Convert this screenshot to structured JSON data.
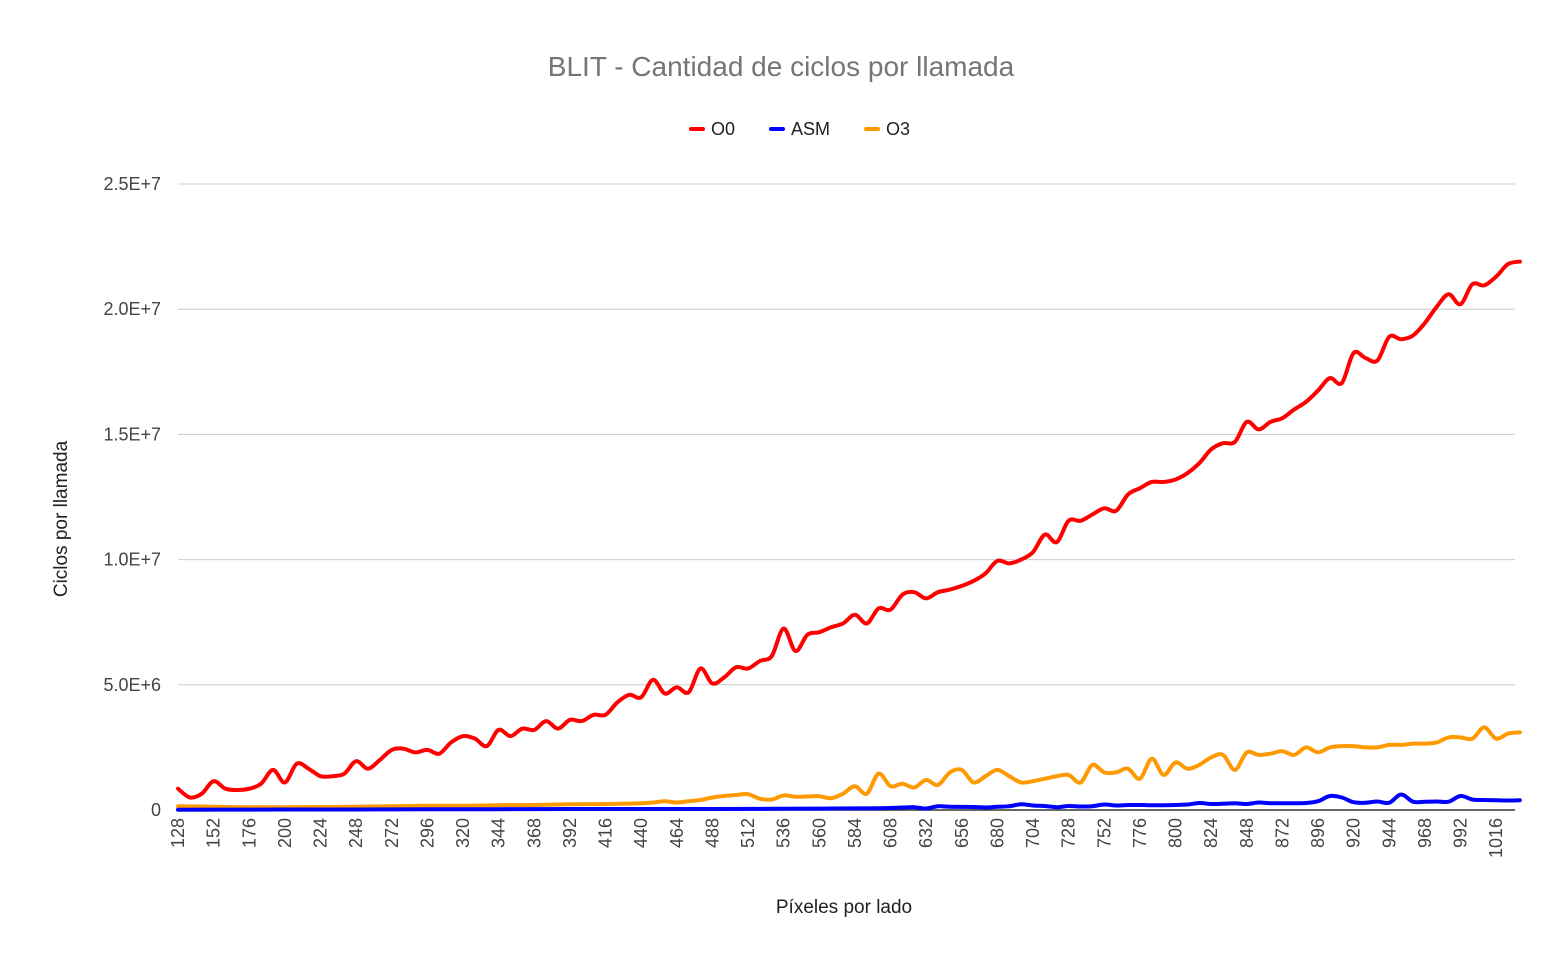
{
  "chart_data": {
    "type": "line",
    "title": "BLIT - Cantidad de ciclos por llamada",
    "xlabel": "Píxeles por lado",
    "ylabel": "Ciclos por llamada",
    "ylim": [
      0,
      25000000
    ],
    "yticks": [
      0,
      5000000,
      10000000,
      15000000,
      20000000,
      25000000
    ],
    "ytick_labels": [
      "0",
      "5.0E+6",
      "1.0E+7",
      "1.5E+7",
      "2.0E+7",
      "2.5E+7"
    ],
    "xlim": [
      128,
      1024
    ],
    "xticks": [
      128,
      152,
      176,
      200,
      224,
      248,
      272,
      296,
      320,
      344,
      368,
      392,
      416,
      440,
      464,
      488,
      512,
      536,
      560,
      584,
      608,
      632,
      656,
      680,
      704,
      728,
      752,
      776,
      800,
      824,
      848,
      872,
      896,
      920,
      944,
      968,
      992,
      1016
    ],
    "legend_position": "top",
    "grid": true,
    "series": [
      {
        "name": "O0",
        "color": "#ff0000",
        "points": [
          [
            128,
            850000
          ],
          [
            136,
            500000
          ],
          [
            144,
            650000
          ],
          [
            152,
            1150000
          ],
          [
            160,
            850000
          ],
          [
            168,
            800000
          ],
          [
            176,
            850000
          ],
          [
            184,
            1050000
          ],
          [
            192,
            1600000
          ],
          [
            200,
            1100000
          ],
          [
            208,
            1850000
          ],
          [
            216,
            1650000
          ],
          [
            224,
            1350000
          ],
          [
            232,
            1350000
          ],
          [
            240,
            1450000
          ],
          [
            248,
            1950000
          ],
          [
            256,
            1650000
          ],
          [
            264,
            2000000
          ],
          [
            272,
            2400000
          ],
          [
            280,
            2450000
          ],
          [
            288,
            2300000
          ],
          [
            296,
            2400000
          ],
          [
            304,
            2250000
          ],
          [
            312,
            2700000
          ],
          [
            320,
            2950000
          ],
          [
            328,
            2850000
          ],
          [
            336,
            2550000
          ],
          [
            344,
            3200000
          ],
          [
            352,
            2950000
          ],
          [
            360,
            3250000
          ],
          [
            368,
            3200000
          ],
          [
            376,
            3550000
          ],
          [
            384,
            3250000
          ],
          [
            392,
            3600000
          ],
          [
            400,
            3550000
          ],
          [
            408,
            3800000
          ],
          [
            416,
            3800000
          ],
          [
            424,
            4300000
          ],
          [
            432,
            4600000
          ],
          [
            440,
            4500000
          ],
          [
            448,
            5200000
          ],
          [
            456,
            4650000
          ],
          [
            464,
            4900000
          ],
          [
            472,
            4700000
          ],
          [
            480,
            5650000
          ],
          [
            488,
            5050000
          ],
          [
            496,
            5300000
          ],
          [
            504,
            5700000
          ],
          [
            512,
            5650000
          ],
          [
            520,
            5950000
          ],
          [
            528,
            6150000
          ],
          [
            536,
            7250000
          ],
          [
            544,
            6350000
          ],
          [
            552,
            7000000
          ],
          [
            560,
            7100000
          ],
          [
            568,
            7300000
          ],
          [
            576,
            7450000
          ],
          [
            584,
            7800000
          ],
          [
            592,
            7450000
          ],
          [
            600,
            8050000
          ],
          [
            608,
            8000000
          ],
          [
            616,
            8600000
          ],
          [
            624,
            8700000
          ],
          [
            632,
            8450000
          ],
          [
            640,
            8700000
          ],
          [
            648,
            8800000
          ],
          [
            656,
            8950000
          ],
          [
            664,
            9150000
          ],
          [
            672,
            9450000
          ],
          [
            680,
            9950000
          ],
          [
            688,
            9850000
          ],
          [
            696,
            10000000
          ],
          [
            704,
            10300000
          ],
          [
            712,
            11000000
          ],
          [
            720,
            10700000
          ],
          [
            728,
            11550000
          ],
          [
            736,
            11550000
          ],
          [
            744,
            11800000
          ],
          [
            752,
            12050000
          ],
          [
            760,
            11950000
          ],
          [
            768,
            12600000
          ],
          [
            776,
            12850000
          ],
          [
            784,
            13100000
          ],
          [
            792,
            13100000
          ],
          [
            800,
            13200000
          ],
          [
            808,
            13450000
          ],
          [
            816,
            13850000
          ],
          [
            824,
            14400000
          ],
          [
            832,
            14650000
          ],
          [
            840,
            14700000
          ],
          [
            848,
            15500000
          ],
          [
            856,
            15200000
          ],
          [
            864,
            15500000
          ],
          [
            872,
            15650000
          ],
          [
            880,
            16000000
          ],
          [
            888,
            16300000
          ],
          [
            896,
            16750000
          ],
          [
            904,
            17250000
          ],
          [
            912,
            17050000
          ],
          [
            920,
            18250000
          ],
          [
            928,
            18050000
          ],
          [
            936,
            17950000
          ],
          [
            944,
            18900000
          ],
          [
            952,
            18800000
          ],
          [
            960,
            18950000
          ],
          [
            968,
            19450000
          ],
          [
            976,
            20100000
          ],
          [
            984,
            20600000
          ],
          [
            992,
            20200000
          ],
          [
            1000,
            21000000
          ],
          [
            1008,
            20950000
          ],
          [
            1016,
            21300000
          ],
          [
            1024,
            21800000
          ],
          [
            1032,
            21900000
          ]
        ]
      },
      {
        "name": "ASM",
        "color": "#0000ff",
        "points": [
          [
            128,
            10000
          ],
          [
            176,
            15000
          ],
          [
            224,
            20000
          ],
          [
            272,
            25000
          ],
          [
            320,
            30000
          ],
          [
            368,
            35000
          ],
          [
            416,
            40000
          ],
          [
            464,
            40000
          ],
          [
            512,
            45000
          ],
          [
            560,
            55000
          ],
          [
            600,
            70000
          ],
          [
            616,
            100000
          ],
          [
            624,
            110000
          ],
          [
            632,
            60000
          ],
          [
            640,
            150000
          ],
          [
            648,
            130000
          ],
          [
            664,
            120000
          ],
          [
            672,
            100000
          ],
          [
            680,
            130000
          ],
          [
            688,
            150000
          ],
          [
            696,
            230000
          ],
          [
            704,
            180000
          ],
          [
            712,
            160000
          ],
          [
            720,
            110000
          ],
          [
            728,
            160000
          ],
          [
            736,
            140000
          ],
          [
            744,
            150000
          ],
          [
            752,
            220000
          ],
          [
            760,
            180000
          ],
          [
            768,
            200000
          ],
          [
            776,
            200000
          ],
          [
            784,
            190000
          ],
          [
            792,
            190000
          ],
          [
            800,
            200000
          ],
          [
            808,
            220000
          ],
          [
            816,
            280000
          ],
          [
            824,
            240000
          ],
          [
            832,
            250000
          ],
          [
            840,
            270000
          ],
          [
            848,
            240000
          ],
          [
            856,
            300000
          ],
          [
            864,
            270000
          ],
          [
            872,
            270000
          ],
          [
            880,
            270000
          ],
          [
            888,
            280000
          ],
          [
            896,
            350000
          ],
          [
            904,
            560000
          ],
          [
            912,
            500000
          ],
          [
            920,
            310000
          ],
          [
            928,
            290000
          ],
          [
            936,
            340000
          ],
          [
            944,
            290000
          ],
          [
            952,
            620000
          ],
          [
            960,
            330000
          ],
          [
            968,
            330000
          ],
          [
            976,
            340000
          ],
          [
            984,
            330000
          ],
          [
            992,
            560000
          ],
          [
            1000,
            420000
          ],
          [
            1008,
            400000
          ],
          [
            1016,
            390000
          ],
          [
            1024,
            380000
          ],
          [
            1032,
            390000
          ]
        ]
      },
      {
        "name": "O3",
        "color": "#ff9900",
        "points": [
          [
            128,
            150000
          ],
          [
            152,
            130000
          ],
          [
            176,
            110000
          ],
          [
            200,
            110000
          ],
          [
            224,
            120000
          ],
          [
            248,
            130000
          ],
          [
            272,
            150000
          ],
          [
            296,
            170000
          ],
          [
            320,
            170000
          ],
          [
            344,
            190000
          ],
          [
            368,
            200000
          ],
          [
            392,
            230000
          ],
          [
            416,
            240000
          ],
          [
            440,
            270000
          ],
          [
            448,
            300000
          ],
          [
            456,
            350000
          ],
          [
            464,
            300000
          ],
          [
            472,
            350000
          ],
          [
            480,
            400000
          ],
          [
            488,
            500000
          ],
          [
            496,
            560000
          ],
          [
            504,
            600000
          ],
          [
            512,
            630000
          ],
          [
            520,
            450000
          ],
          [
            528,
            420000
          ],
          [
            536,
            580000
          ],
          [
            544,
            530000
          ],
          [
            552,
            540000
          ],
          [
            560,
            550000
          ],
          [
            568,
            470000
          ],
          [
            576,
            650000
          ],
          [
            584,
            950000
          ],
          [
            592,
            650000
          ],
          [
            600,
            1450000
          ],
          [
            608,
            950000
          ],
          [
            616,
            1050000
          ],
          [
            624,
            900000
          ],
          [
            632,
            1200000
          ],
          [
            640,
            1000000
          ],
          [
            648,
            1500000
          ],
          [
            656,
            1600000
          ],
          [
            664,
            1100000
          ],
          [
            672,
            1350000
          ],
          [
            680,
            1600000
          ],
          [
            688,
            1350000
          ],
          [
            696,
            1100000
          ],
          [
            704,
            1150000
          ],
          [
            712,
            1250000
          ],
          [
            720,
            1350000
          ],
          [
            728,
            1400000
          ],
          [
            736,
            1100000
          ],
          [
            744,
            1800000
          ],
          [
            752,
            1500000
          ],
          [
            760,
            1500000
          ],
          [
            768,
            1650000
          ],
          [
            776,
            1250000
          ],
          [
            784,
            2050000
          ],
          [
            792,
            1400000
          ],
          [
            800,
            1900000
          ],
          [
            808,
            1650000
          ],
          [
            816,
            1800000
          ],
          [
            824,
            2100000
          ],
          [
            832,
            2200000
          ],
          [
            840,
            1600000
          ],
          [
            848,
            2300000
          ],
          [
            856,
            2200000
          ],
          [
            864,
            2250000
          ],
          [
            872,
            2350000
          ],
          [
            880,
            2200000
          ],
          [
            888,
            2500000
          ],
          [
            896,
            2300000
          ],
          [
            904,
            2500000
          ],
          [
            912,
            2550000
          ],
          [
            920,
            2550000
          ],
          [
            928,
            2500000
          ],
          [
            936,
            2500000
          ],
          [
            944,
            2600000
          ],
          [
            952,
            2600000
          ],
          [
            960,
            2650000
          ],
          [
            968,
            2650000
          ],
          [
            976,
            2700000
          ],
          [
            984,
            2900000
          ],
          [
            992,
            2900000
          ],
          [
            1000,
            2850000
          ],
          [
            1008,
            3300000
          ],
          [
            1016,
            2850000
          ],
          [
            1024,
            3050000
          ],
          [
            1032,
            3100000
          ]
        ]
      }
    ]
  }
}
